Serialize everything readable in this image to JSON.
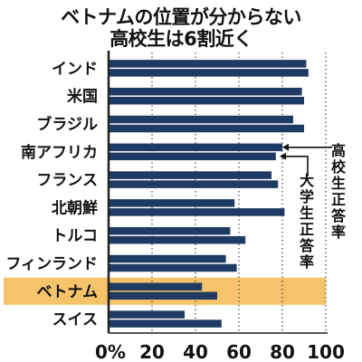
{
  "chart_data": {
    "type": "bar",
    "orientation": "horizontal",
    "title_lines": [
      "ベトナムの位置が分からない",
      "高校生は6割近く"
    ],
    "categories": [
      "インド",
      "米国",
      "ブラジル",
      "南アフリカ",
      "フランス",
      "北朝鮮",
      "トルコ",
      "フィンランド",
      "ベトナム",
      "スイス"
    ],
    "series": [
      {
        "name": "高校生正答率",
        "values": [
          91,
          89,
          85,
          80,
          75,
          58,
          56,
          54,
          43,
          35
        ]
      },
      {
        "name": "大学生正答率",
        "values": [
          92,
          90,
          90,
          77,
          78,
          81,
          63,
          59,
          50,
          52
        ]
      }
    ],
    "highlight_category": "ベトナム",
    "xlim": [
      0,
      100
    ],
    "x_ticks": [
      "0%",
      "20",
      "40",
      "60",
      "80",
      "100"
    ],
    "x_tick_values": [
      0,
      20,
      40,
      60,
      80,
      100
    ],
    "grid": "vertical dotted",
    "colors": {
      "bar": "#1f3a63",
      "highlight_band": "#f4c36a",
      "grid": "#555555",
      "axis": "#222222"
    }
  }
}
